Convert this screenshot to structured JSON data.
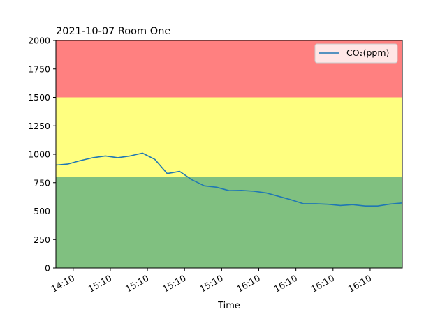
{
  "chart_data": {
    "type": "line",
    "title": "2021-10-07 Room One",
    "xlabel": "Time",
    "ylabel": "",
    "ylim": [
      0,
      2000
    ],
    "yticks": [
      0,
      250,
      500,
      750,
      1000,
      1250,
      1500,
      1750,
      2000
    ],
    "x_tick_labels": [
      "14:10",
      "15:10",
      "15:10",
      "15:10",
      "15:10",
      "16:10",
      "16:10",
      "16:10",
      "16:10"
    ],
    "x_tick_positions": [
      1.4,
      4.4,
      7.4,
      10.4,
      13.4,
      16.4,
      19.4,
      22.4,
      25.4
    ],
    "xlim": [
      0,
      28
    ],
    "legend": {
      "position": "top-right"
    },
    "bands": [
      {
        "from": 0,
        "to": 800,
        "color": "#80c080"
      },
      {
        "from": 800,
        "to": 1500,
        "color": "#ffff80"
      },
      {
        "from": 1500,
        "to": 2000,
        "color": "#ff8080"
      }
    ],
    "series": [
      {
        "name": "CO₂(ppm)",
        "color": "#1f77b4",
        "x": [
          0,
          1,
          2,
          3,
          4,
          5,
          6,
          7,
          8,
          9,
          10,
          11,
          12,
          13,
          14,
          15,
          16,
          17,
          18,
          19,
          20,
          21,
          22,
          23,
          24,
          25,
          26,
          27,
          28
        ],
        "values": [
          905,
          915,
          945,
          970,
          985,
          970,
          985,
          1010,
          955,
          830,
          850,
          775,
          722,
          710,
          680,
          682,
          675,
          660,
          630,
          600,
          565,
          565,
          560,
          550,
          557,
          545,
          545,
          562,
          572
        ]
      }
    ]
  }
}
